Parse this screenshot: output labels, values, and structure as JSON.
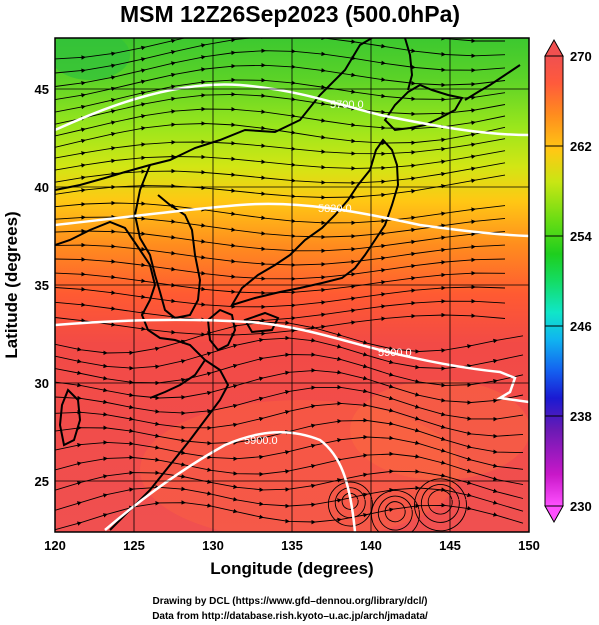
{
  "title": "MSM 12Z26Sep2023 (500.0hPa)",
  "xaxis": {
    "label": "Longitude (degrees)",
    "range": [
      120,
      150
    ],
    "ticks": [
      "120",
      "125",
      "130",
      "135",
      "140",
      "145",
      "150"
    ]
  },
  "yaxis": {
    "label": "Latitude  (degrees)",
    "range": [
      22.4,
      47.6
    ],
    "ticks": [
      "25",
      "30",
      "35",
      "40",
      "45"
    ]
  },
  "colorbar": {
    "min": 230,
    "max": 270,
    "ticks": [
      "230",
      "238",
      "246",
      "254",
      "262",
      "270"
    ],
    "colors": [
      "#ff50ff",
      "#c818c8",
      "#6a1ab4",
      "#1a1ad2",
      "#1460f0",
      "#10b4f0",
      "#10e6c8",
      "#14dc64",
      "#1ece1e",
      "#64dc14",
      "#aae614",
      "#e6e614",
      "#ffc814",
      "#ff8c1e",
      "#ff5a3c",
      "#f05050"
    ]
  },
  "contours": [
    {
      "label": "5700.0"
    },
    {
      "label": "5820.0"
    },
    {
      "label": "5900.0"
    },
    {
      "label": "5900.0"
    }
  ],
  "credits": {
    "line1": "Drawing by DCL (https://www.gfd–dennou.org/library/dcl/)",
    "line2": "Data from http://database.rish.kyoto–u.ac.jp/arch/jmadata/"
  }
}
